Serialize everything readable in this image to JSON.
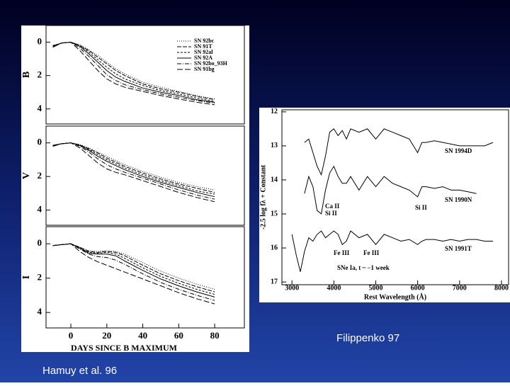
{
  "captions": {
    "right": "Filippenko 97",
    "left": "Hamuy et al. 96"
  },
  "chart_data": [
    {
      "type": "line",
      "ylabel": "B",
      "x": [
        -10,
        -5,
        0,
        5,
        10,
        15,
        20,
        25,
        30,
        40,
        50,
        60,
        70,
        80
      ],
      "xlim": [
        -13.8,
        96.5
      ],
      "ylim": [
        4.9,
        -1
      ],
      "yticks": [
        0,
        2,
        4
      ],
      "legend": "top-right",
      "series": [
        {
          "name": "SN 92bc",
          "color": "#000",
          "dash": "1,2",
          "values": [
            0.2,
            0.05,
            0,
            0.15,
            0.45,
            0.8,
            1.2,
            1.6,
            1.9,
            2.4,
            2.7,
            2.95,
            3.2,
            3.4
          ]
        },
        {
          "name": "SN 91T",
          "color": "#000",
          "dash": "6,2",
          "values": [
            0.25,
            0.05,
            0,
            0.2,
            0.5,
            0.9,
            1.3,
            1.7,
            2.0,
            2.5,
            2.8,
            3.0,
            3.25,
            3.45
          ]
        },
        {
          "name": "SN 92al",
          "color": "#000",
          "dash": "3,2",
          "values": [
            0.2,
            0.05,
            0,
            0.2,
            0.6,
            1.05,
            1.5,
            1.9,
            2.2,
            2.6,
            2.9,
            3.1,
            3.35,
            3.55
          ]
        },
        {
          "name": "SN 92A",
          "color": "#000",
          "dash": "none",
          "values": [
            0.25,
            0.05,
            0,
            0.25,
            0.7,
            1.2,
            1.7,
            2.1,
            2.35,
            2.75,
            3.0,
            3.2,
            3.45,
            3.6
          ]
        },
        {
          "name": "SN 92bo_93H",
          "color": "#000",
          "dash": "6,2,1,2",
          "values": [
            0.3,
            0.05,
            0,
            0.35,
            0.85,
            1.4,
            1.95,
            2.3,
            2.55,
            2.85,
            3.1,
            3.3,
            3.5,
            3.65
          ]
        },
        {
          "name": "SN 91bg",
          "color": "#000",
          "dash": "8,3",
          "values": [
            0.3,
            0.05,
            0,
            0.5,
            1.1,
            1.7,
            2.2,
            2.5,
            2.7,
            2.95,
            3.2,
            3.4,
            3.6,
            3.75
          ]
        }
      ]
    },
    {
      "type": "line",
      "ylabel": "V",
      "x": [
        -10,
        -5,
        0,
        5,
        10,
        15,
        20,
        25,
        30,
        40,
        50,
        60,
        70,
        80
      ],
      "xlim": [
        -13.8,
        96.5
      ],
      "ylim": [
        4.9,
        -1
      ],
      "yticks": [
        0,
        2,
        4
      ],
      "series": [
        {
          "color": "#000",
          "dash": "1,2",
          "values": [
            0.15,
            0.05,
            0,
            0.1,
            0.3,
            0.55,
            0.8,
            1.05,
            1.3,
            1.7,
            2.05,
            2.35,
            2.6,
            2.8
          ]
        },
        {
          "color": "#000",
          "dash": "6,2",
          "values": [
            0.15,
            0.05,
            0,
            0.12,
            0.35,
            0.6,
            0.9,
            1.15,
            1.4,
            1.8,
            2.15,
            2.45,
            2.7,
            2.95
          ]
        },
        {
          "color": "#000",
          "dash": "3,2",
          "values": [
            0.15,
            0.05,
            0,
            0.15,
            0.4,
            0.7,
            1.0,
            1.25,
            1.5,
            1.9,
            2.25,
            2.55,
            2.85,
            3.05
          ]
        },
        {
          "color": "#000",
          "dash": "none",
          "values": [
            0.15,
            0.05,
            0,
            0.15,
            0.45,
            0.8,
            1.1,
            1.35,
            1.6,
            2.0,
            2.35,
            2.65,
            2.95,
            3.2
          ]
        },
        {
          "color": "#000",
          "dash": "6,2,1,2",
          "values": [
            0.2,
            0.05,
            0,
            0.2,
            0.55,
            0.95,
            1.3,
            1.55,
            1.75,
            2.1,
            2.45,
            2.8,
            3.1,
            3.35
          ]
        },
        {
          "color": "#000",
          "dash": "8,3",
          "values": [
            0.2,
            0.05,
            0,
            0.3,
            0.75,
            1.2,
            1.55,
            1.75,
            1.9,
            2.25,
            2.6,
            2.95,
            3.25,
            3.5
          ]
        }
      ]
    },
    {
      "type": "line",
      "ylabel": "I",
      "xlabel": "DAYS SINCE B MAXIMUM",
      "x": [
        -10,
        -5,
        0,
        5,
        10,
        15,
        20,
        25,
        30,
        40,
        50,
        60,
        70,
        80
      ],
      "xlim": [
        -13.8,
        96.5
      ],
      "ylim": [
        4.9,
        -1
      ],
      "yticks": [
        0,
        2,
        4
      ],
      "xticks": [
        0,
        20,
        40,
        60,
        80
      ],
      "series": [
        {
          "color": "#000",
          "dash": "1,2",
          "values": [
            0.1,
            0.05,
            0,
            0.2,
            0.4,
            0.45,
            0.4,
            0.45,
            0.6,
            1.1,
            1.6,
            2.0,
            2.35,
            2.65
          ]
        },
        {
          "color": "#000",
          "dash": "6,2",
          "values": [
            0.1,
            0.05,
            0,
            0.2,
            0.45,
            0.5,
            0.45,
            0.5,
            0.7,
            1.25,
            1.75,
            2.15,
            2.5,
            2.8
          ]
        },
        {
          "color": "#000",
          "dash": "3,2",
          "values": [
            0.1,
            0.05,
            0,
            0.25,
            0.5,
            0.55,
            0.5,
            0.6,
            0.85,
            1.4,
            1.9,
            2.3,
            2.65,
            2.95
          ]
        },
        {
          "color": "#000",
          "dash": "none",
          "values": [
            0.1,
            0.05,
            0,
            0.25,
            0.55,
            0.6,
            0.6,
            0.7,
            1.0,
            1.55,
            2.05,
            2.45,
            2.8,
            3.1
          ]
        },
        {
          "color": "#000",
          "dash": "6,2,1,2",
          "values": [
            0.1,
            0.05,
            0,
            0.3,
            0.6,
            0.75,
            0.8,
            0.95,
            1.2,
            1.75,
            2.25,
            2.65,
            3.0,
            3.3
          ]
        },
        {
          "color": "#000",
          "dash": "8,3",
          "values": [
            0.1,
            0.05,
            0,
            0.45,
            0.8,
            1.05,
            1.25,
            1.45,
            1.65,
            2.05,
            2.45,
            2.85,
            3.2,
            3.5
          ]
        }
      ]
    },
    {
      "type": "line",
      "xlabel": "Rest Wavelength (Å)",
      "ylabel": "-2.5 log fλ + Constant",
      "x": [
        3000,
        3100,
        3200,
        3300,
        3400,
        3500,
        3600,
        3700,
        3800,
        3900,
        4000,
        4100,
        4200,
        4300,
        4400,
        4600,
        4800,
        5000,
        5200,
        5400,
        5600,
        5800,
        6000,
        6100,
        6200,
        6400,
        6600,
        6800,
        7000,
        7200,
        7400,
        7600,
        7800
      ],
      "xlim": [
        2760,
        8170
      ],
      "ylim": [
        17.08,
        11.94
      ],
      "xticks": [
        3000,
        4000,
        5000,
        6000,
        7000,
        8000
      ],
      "yticks": [
        12,
        13,
        14,
        15,
        16,
        17
      ],
      "annotations": [
        "SN 1994D",
        "SN 1990N",
        "SN 1991T",
        "Ca II",
        "Si II",
        "Si II",
        "Fe III",
        "Fe III",
        "SNe Ia, t ~ −1 week"
      ],
      "series": [
        {
          "name": "SN 1994D",
          "color": "#000",
          "values": [
            null,
            null,
            null,
            12.9,
            12.8,
            13.2,
            13.6,
            13.85,
            13.3,
            12.6,
            12.5,
            12.7,
            12.55,
            12.8,
            12.5,
            12.6,
            12.5,
            12.8,
            12.5,
            12.6,
            12.7,
            12.8,
            13.2,
            12.9,
            12.9,
            12.85,
            12.9,
            12.95,
            13.0,
            13.0,
            13.0,
            13.0,
            12.9
          ]
        },
        {
          "name": "SN 1990N",
          "color": "#000",
          "values": [
            null,
            null,
            null,
            14.4,
            13.9,
            14.2,
            14.9,
            15.0,
            14.3,
            13.8,
            13.6,
            13.9,
            14.1,
            14.1,
            13.9,
            14.3,
            13.9,
            14.2,
            13.9,
            14.1,
            14.2,
            14.3,
            14.5,
            14.2,
            14.2,
            14.25,
            14.2,
            14.3,
            14.3,
            14.35,
            14.4,
            null,
            null
          ]
        },
        {
          "name": "SN 1991T",
          "color": "#000",
          "values": [
            15.6,
            16.2,
            16.7,
            16.1,
            15.7,
            15.8,
            15.6,
            15.5,
            15.7,
            15.6,
            15.5,
            15.6,
            15.9,
            15.8,
            15.5,
            15.7,
            15.6,
            15.9,
            15.6,
            15.7,
            15.8,
            15.75,
            15.9,
            15.8,
            15.75,
            15.75,
            15.8,
            15.75,
            15.8,
            15.75,
            15.75,
            15.8,
            15.8
          ]
        }
      ]
    }
  ]
}
